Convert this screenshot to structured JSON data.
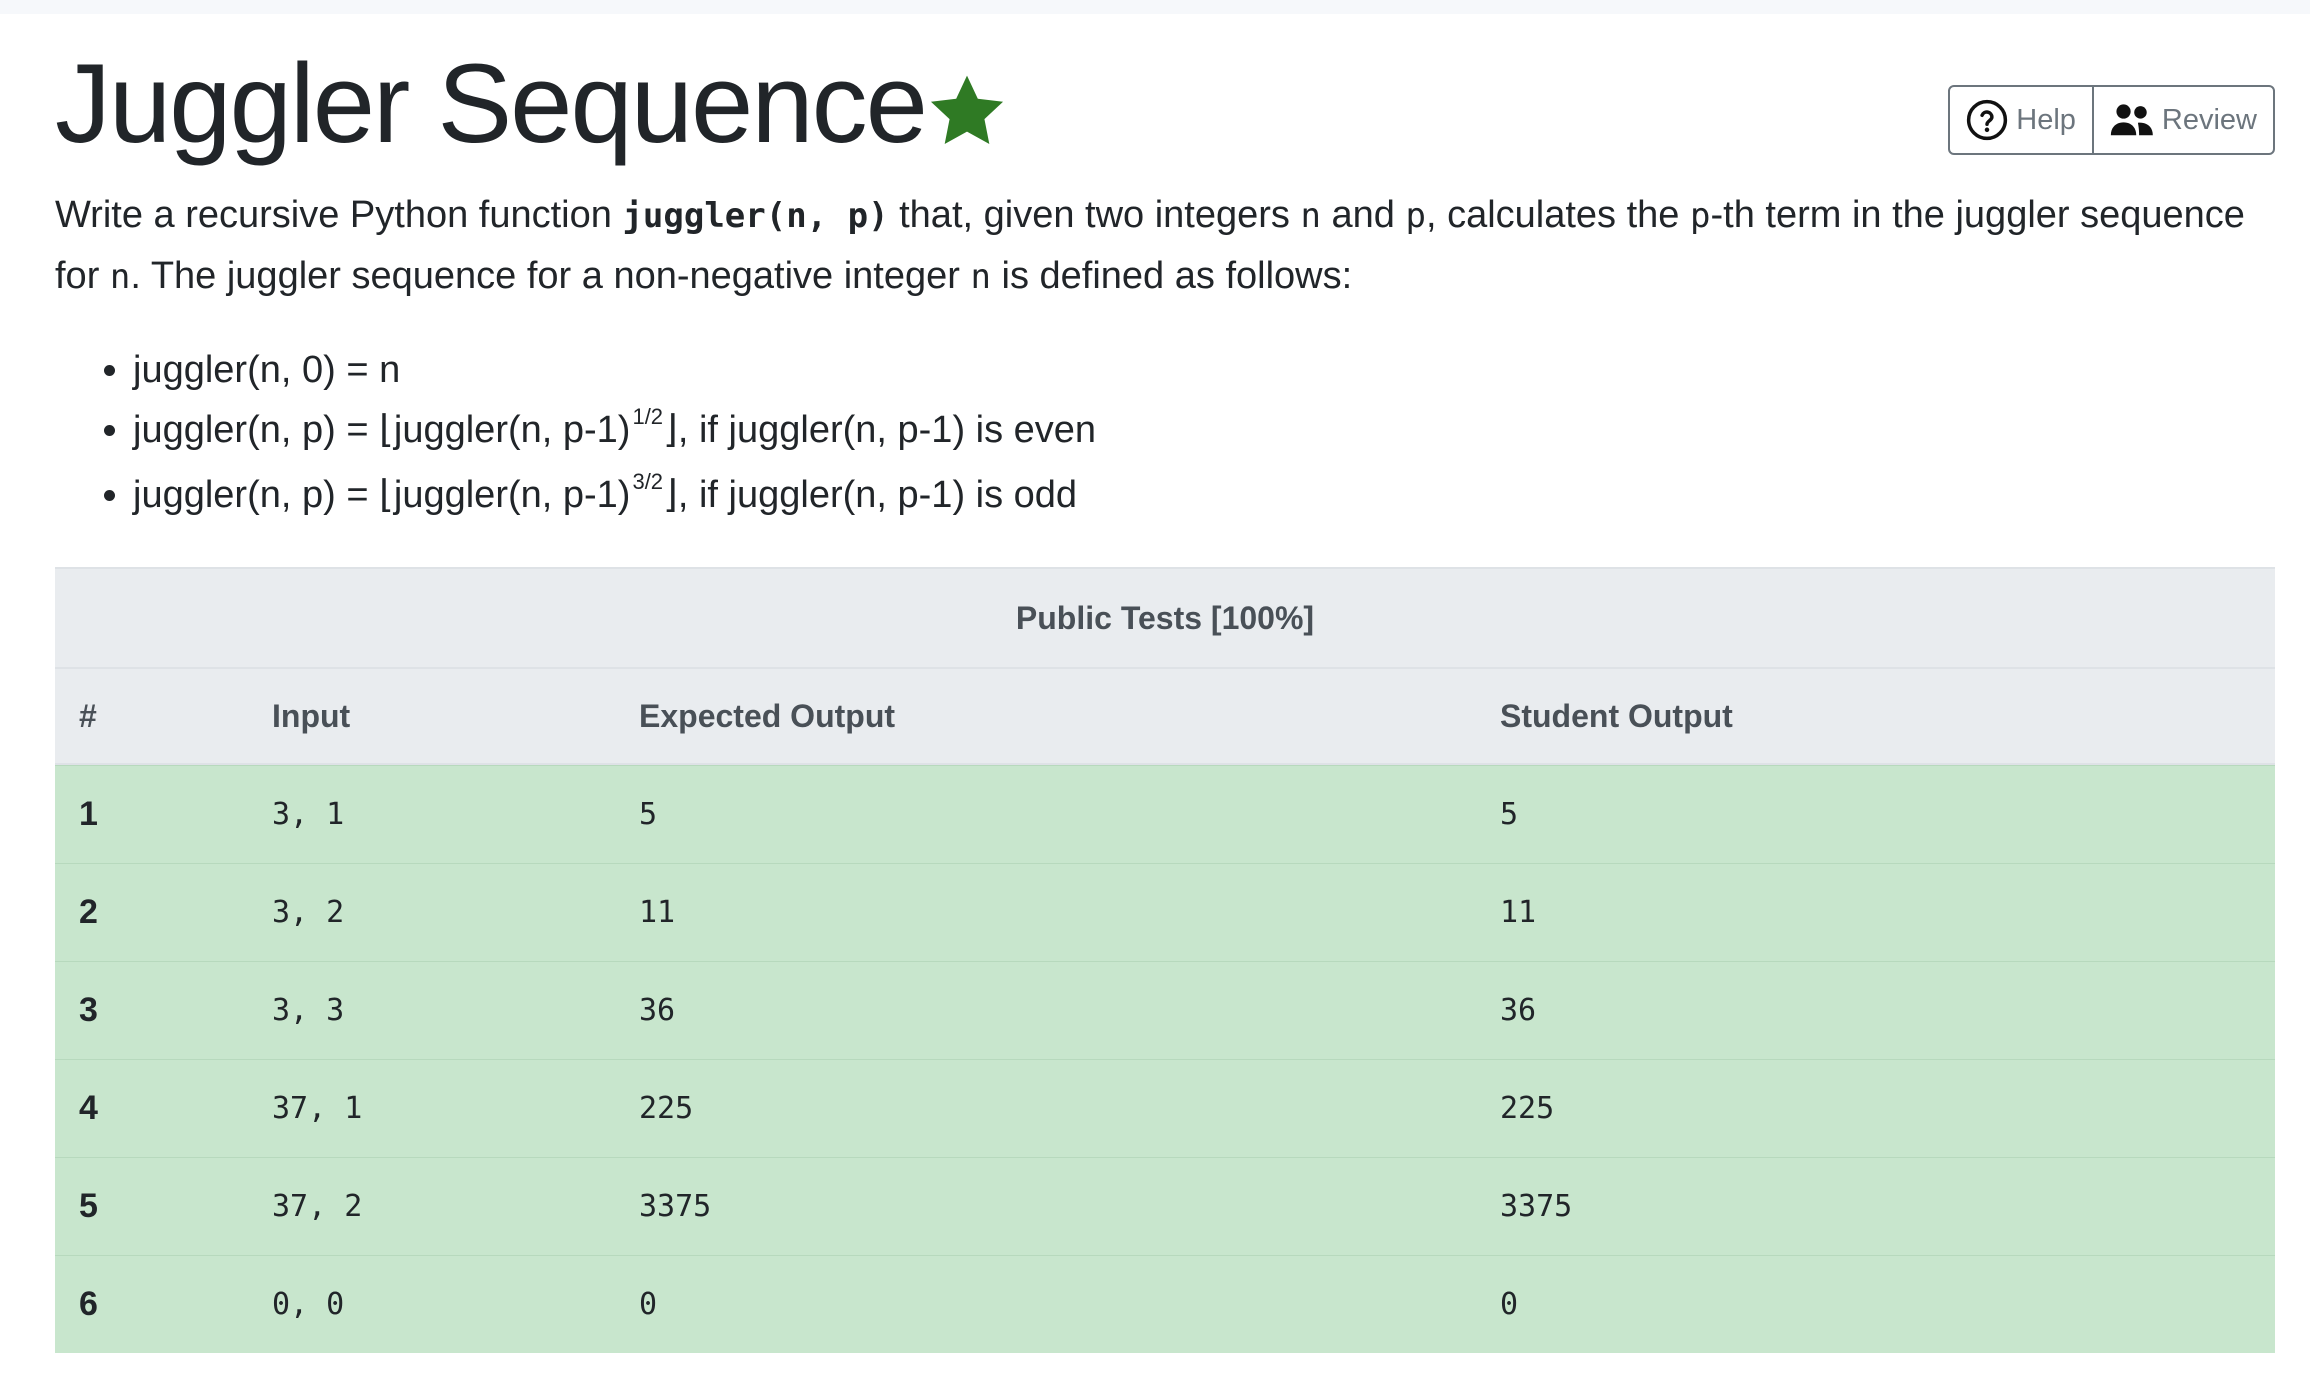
{
  "header": {
    "title": "Juggler Sequence",
    "star_icon": "star-icon",
    "star_color": "#2f7a24",
    "help_label": "Help",
    "review_label": "Review"
  },
  "description": {
    "p1": "Write a recursive Python function ",
    "code_sig": "juggler(n, p)",
    "p2": " that, given two integers ",
    "code_n1": "n",
    "p3": " and ",
    "code_p1": "p",
    "p4": ", calculates the ",
    "code_p2": "p",
    "p5": "-th term in the juggler sequence for ",
    "code_n2": "n",
    "p6": ". The juggler sequence for a non-negative integer ",
    "code_n3": "n",
    "p7": " is defined as follows:"
  },
  "rules": {
    "r1": "juggler(n, 0) = n",
    "r2_pre": "juggler(n, p) = ⌊juggler(n, p-1)",
    "r2_sup": "1/2",
    "r2_post": "⌋, if juggler(n, p-1) is even",
    "r3_pre": "juggler(n, p) = ⌊juggler(n, p-1)",
    "r3_sup": "3/2",
    "r3_post": "⌋, if juggler(n, p-1) is odd"
  },
  "tests": {
    "heading": "Public Tests [100%]",
    "columns": [
      "#",
      "Input",
      "Expected Output",
      "Student Output"
    ],
    "pass_color": "#c8e6cd",
    "rows": [
      {
        "num": "1",
        "input": "3, 1",
        "expected": "5",
        "student": "5"
      },
      {
        "num": "2",
        "input": "3, 2",
        "expected": "11",
        "student": "11"
      },
      {
        "num": "3",
        "input": "3, 3",
        "expected": "36",
        "student": "36"
      },
      {
        "num": "4",
        "input": "37, 1",
        "expected": "225",
        "student": "225"
      },
      {
        "num": "5",
        "input": "37, 2",
        "expected": "3375",
        "student": "3375"
      },
      {
        "num": "6",
        "input": "0, 0",
        "expected": "0",
        "student": "0"
      }
    ]
  }
}
